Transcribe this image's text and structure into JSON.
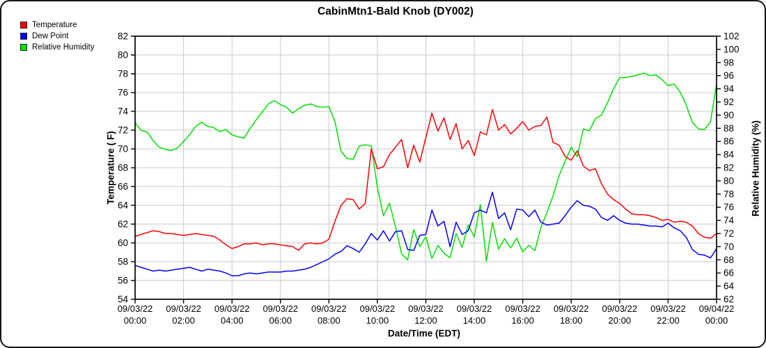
{
  "title": "CabinMtn1-Bald Knob (DY002)",
  "legend": {
    "items": [
      {
        "label": "Temperature",
        "color": "#ff0000"
      },
      {
        "label": "Dew Point",
        "color": "#0000ff"
      },
      {
        "label": "Relative Humidity",
        "color": "#00e000"
      }
    ]
  },
  "chart_data": {
    "type": "line",
    "title": "CabinMtn1-Bald Knob (DY002)",
    "grid": true,
    "legend_position": "top-left",
    "grid_color": "#c9c9c9",
    "x_axis": {
      "title": "Date/Time (EDT)",
      "start_hour": 0,
      "end_hour": 24,
      "ticks": [
        {
          "date": "09/03/22",
          "time": "00:00"
        },
        {
          "date": "09/03/22",
          "time": "02:00"
        },
        {
          "date": "09/03/22",
          "time": "04:00"
        },
        {
          "date": "09/03/22",
          "time": "06:00"
        },
        {
          "date": "09/03/22",
          "time": "08:00"
        },
        {
          "date": "09/03/22",
          "time": "10:00"
        },
        {
          "date": "09/03/22",
          "time": "12:00"
        },
        {
          "date": "09/03/22",
          "time": "14:00"
        },
        {
          "date": "09/03/22",
          "time": "16:00"
        },
        {
          "date": "09/03/22",
          "time": "18:00"
        },
        {
          "date": "09/03/22",
          "time": "20:00"
        },
        {
          "date": "09/03/22",
          "time": "22:00"
        },
        {
          "date": "09/04/22",
          "time": "00:00"
        }
      ]
    },
    "left_axis": {
      "title": "Temperature ( F)",
      "min": 54,
      "max": 82,
      "tick_step": 2
    },
    "right_axis": {
      "title": "Relative Humidity (%)",
      "min": 62,
      "max": 102,
      "tick_step": 2
    },
    "interval_minutes": 15,
    "series": [
      {
        "name": "Temperature",
        "axis": "left",
        "color": "#ff0000",
        "unit": "F",
        "values": [
          60.7,
          60.9,
          61.1,
          61.3,
          61.2,
          61.0,
          61.0,
          60.9,
          60.8,
          60.9,
          61.0,
          60.9,
          60.8,
          60.7,
          60.3,
          59.8,
          59.4,
          59.6,
          59.9,
          59.9,
          60.0,
          59.8,
          59.9,
          59.9,
          59.8,
          59.7,
          59.6,
          59.2,
          59.9,
          60.0,
          59.9,
          60.0,
          60.4,
          62.3,
          64.0,
          64.7,
          64.6,
          63.6,
          64.2,
          70.0,
          67.9,
          68.1,
          69.4,
          70.2,
          71.0,
          68.0,
          70.4,
          68.6,
          71.2,
          73.8,
          71.9,
          73.3,
          71.0,
          72.7,
          70.0,
          70.9,
          69.3,
          71.8,
          71.5,
          74.2,
          72.0,
          72.6,
          71.6,
          72.2,
          72.9,
          72.0,
          72.4,
          72.5,
          73.4,
          70.7,
          70.4,
          69.2,
          68.8,
          69.8,
          68.2,
          67.7,
          67.9,
          66.3,
          65.2,
          64.6,
          64.2,
          63.6,
          63.1,
          63.0,
          63.0,
          62.9,
          62.7,
          62.4,
          62.5,
          62.2,
          62.3,
          62.2,
          61.8,
          61.0,
          60.6,
          60.5,
          61.0
        ]
      },
      {
        "name": "Dew Point",
        "axis": "left",
        "color": "#0000ff",
        "unit": "F",
        "values": [
          57.6,
          57.4,
          57.2,
          57.0,
          57.1,
          57.0,
          57.1,
          57.2,
          57.3,
          57.4,
          57.2,
          57.0,
          57.2,
          57.1,
          57.0,
          56.8,
          56.5,
          56.5,
          56.7,
          56.8,
          56.7,
          56.8,
          56.9,
          56.9,
          56.9,
          57.0,
          57.0,
          57.1,
          57.2,
          57.4,
          57.7,
          58.0,
          58.3,
          58.8,
          59.1,
          59.7,
          59.4,
          59.0,
          59.9,
          61.0,
          60.3,
          61.3,
          60.2,
          61.2,
          61.3,
          59.3,
          59.2,
          60.8,
          60.9,
          63.5,
          61.8,
          62.3,
          59.6,
          62.2,
          60.9,
          61.3,
          63.2,
          63.5,
          63.2,
          65.4,
          62.6,
          63.2,
          61.4,
          63.6,
          63.5,
          62.8,
          63.5,
          62.2,
          61.9,
          62.0,
          62.1,
          62.9,
          63.8,
          64.5,
          64.0,
          63.9,
          63.6,
          62.7,
          62.4,
          62.9,
          62.4,
          62.1,
          62.0,
          62.0,
          61.9,
          61.8,
          61.8,
          61.7,
          62.1,
          61.6,
          61.3,
          60.6,
          59.3,
          58.8,
          58.7,
          58.4,
          59.4
        ]
      },
      {
        "name": "Relative Humidity",
        "axis": "right",
        "color": "#00e000",
        "unit": "%",
        "values": [
          88.8,
          87.7,
          87.4,
          86.1,
          85.1,
          84.8,
          84.6,
          85.0,
          86.0,
          87.0,
          88.3,
          88.9,
          88.3,
          88.1,
          87.5,
          87.8,
          87.0,
          86.7,
          86.5,
          88.0,
          89.3,
          90.5,
          91.7,
          92.2,
          91.6,
          91.2,
          90.3,
          91.0,
          91.5,
          91.7,
          91.3,
          91.2,
          91.3,
          89.0,
          84.5,
          83.4,
          83.3,
          85.3,
          85.5,
          85.3,
          79.0,
          74.7,
          76.6,
          73.0,
          68.9,
          68.0,
          72.6,
          70.0,
          71.5,
          68.2,
          70.2,
          69.0,
          68.3,
          72.0,
          69.9,
          73.3,
          71.5,
          76.4,
          67.8,
          73.7,
          69.6,
          71.2,
          69.8,
          71.3,
          69.2,
          70.2,
          69.4,
          72.9,
          75.2,
          77.7,
          80.8,
          83.0,
          85.1,
          83.7,
          87.9,
          87.6,
          89.5,
          90.0,
          91.9,
          94.0,
          95.7,
          95.7,
          95.9,
          96.1,
          96.4,
          96.0,
          96.1,
          95.4,
          94.5,
          94.7,
          93.5,
          91.5,
          88.9,
          87.9,
          87.8,
          89.0,
          94.7
        ]
      }
    ]
  }
}
